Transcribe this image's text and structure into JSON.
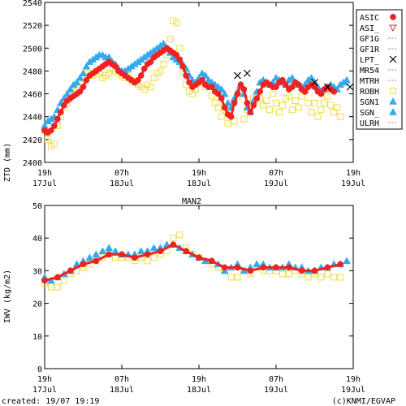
{
  "footer": {
    "created": "created: 19/07 19:19",
    "credit": "(c)KNMI/EGVAP"
  },
  "chart_data": [
    {
      "type": "scatter",
      "title": "",
      "ylabel": "ZTD (mm)",
      "xlabel": "",
      "ylim": [
        2400,
        2540
      ],
      "yticks": [
        2400,
        2420,
        2440,
        2460,
        2480,
        2500,
        2520,
        2540
      ],
      "xlim": [
        0,
        48
      ],
      "xticks": [
        {
          "x": 0,
          "line1": "19h",
          "line2": "17Jul"
        },
        {
          "x": 12,
          "line1": "07h",
          "line2": "18Jul"
        },
        {
          "x": 24,
          "line1": "19h",
          "line2": "18Jul"
        },
        {
          "x": 36,
          "line1": "07h",
          "line2": "19Jul"
        },
        {
          "x": 48,
          "line1": "19h",
          "line2": "19Jul"
        }
      ],
      "grid": false,
      "legend_position": "right",
      "legend": [
        {
          "name": "ASIC",
          "color": "#ee2222",
          "marker": "dot"
        },
        {
          "name": "ASI_",
          "color": "#cc3333",
          "marker": "triangle-down"
        },
        {
          "name": "GF1G",
          "color": "#888888",
          "marker": "dash"
        },
        {
          "name": "GF1R",
          "color": "#888888",
          "marker": "dash"
        },
        {
          "name": "LPT_",
          "color": "#000000",
          "marker": "x"
        },
        {
          "name": "MR54",
          "color": "#888888",
          "marker": "dash"
        },
        {
          "name": "MTRH",
          "color": "#888888",
          "marker": "dash"
        },
        {
          "name": "ROBH",
          "color": "#eedd44",
          "marker": "square"
        },
        {
          "name": "SGN1",
          "color": "#33aaee",
          "marker": "triangle-up"
        },
        {
          "name": "SGN_",
          "color": "#33aaee",
          "marker": "triangle-up"
        },
        {
          "name": "ULRH",
          "color": "#888888",
          "marker": "dash"
        }
      ],
      "series": [
        {
          "name": "ROBH",
          "color": "#eedd44",
          "marker": "square",
          "x": [
            0,
            0.5,
            1,
            1.5,
            2,
            2.5,
            3,
            3.5,
            4,
            4.5,
            5,
            5.5,
            6,
            6.5,
            7,
            7.5,
            8,
            8.5,
            9,
            9.5,
            10,
            10.5,
            11,
            11.5,
            12,
            12.5,
            13,
            13.5,
            14,
            14.5,
            15,
            15.5,
            16,
            16.5,
            17,
            17.5,
            18,
            18.5,
            19,
            19.5,
            20,
            20.5,
            21,
            21.5,
            22,
            22.5,
            23,
            23.5,
            24,
            24.5,
            25,
            25.5,
            26,
            26.5,
            27,
            27.5,
            28,
            28.5,
            29,
            29.5,
            30,
            30.5,
            31,
            31.5,
            32,
            32.5,
            33,
            33.5,
            34,
            34.5,
            35,
            35.5,
            36,
            36.5,
            37,
            37.5,
            38,
            38.5,
            39,
            39.5,
            40,
            40.5,
            41,
            41.5,
            42,
            42.5,
            43,
            43.5,
            44,
            44.5,
            45,
            45.5,
            46
          ],
          "y": [
            2428,
            2420,
            2414,
            2416,
            2432,
            2440,
            2448,
            2452,
            2458,
            2462,
            2466,
            2468,
            2474,
            2478,
            2478,
            2476,
            2480,
            2478,
            2474,
            2476,
            2478,
            2482,
            2480,
            2478,
            2476,
            2474,
            2476,
            2472,
            2470,
            2468,
            2466,
            2464,
            2468,
            2466,
            2474,
            2478,
            2480,
            2486,
            2494,
            2508,
            2524,
            2522,
            2500,
            2480,
            2468,
            2462,
            2460,
            2464,
            2470,
            2474,
            2466,
            2468,
            2458,
            2452,
            2448,
            2440,
            2446,
            2434,
            2450,
            2436,
            2458,
            2464,
            2438,
            2446,
            2452,
            2456,
            2460,
            2456,
            2450,
            2454,
            2446,
            2460,
            2452,
            2444,
            2450,
            2456,
            2458,
            2446,
            2454,
            2448,
            2458,
            2462,
            2452,
            2444,
            2452,
            2440,
            2446,
            2452,
            2458,
            2450,
            2444,
            2448,
            2440
          ]
        },
        {
          "name": "SGN1",
          "color": "#33aaee",
          "marker": "triangle-up",
          "x": [
            0,
            0.5,
            1,
            1.5,
            2,
            2.5,
            3,
            3.5,
            4,
            4.5,
            5,
            5.5,
            6,
            6.5,
            7,
            7.5,
            8,
            8.5,
            9,
            9.5,
            10,
            10.5,
            11,
            11.5,
            12,
            12.5,
            13,
            13.5,
            14,
            14.5,
            15,
            15.5,
            16,
            16.5,
            17,
            17.5,
            18,
            18.5,
            19,
            19.5,
            20,
            20.5,
            21,
            21.5,
            22,
            22.5,
            23,
            23.5,
            24,
            24.5,
            25,
            25.5,
            26,
            26.5,
            27,
            27.5,
            28,
            28.5,
            29,
            29.5,
            30,
            30.5,
            31,
            31.5,
            32,
            32.5,
            33,
            33.5,
            34,
            34.5,
            35,
            35.5,
            36,
            36.5,
            37,
            37.5,
            38,
            38.5,
            39,
            39.5,
            40,
            40.5,
            41,
            41.5,
            42,
            42.5,
            43,
            43.5,
            44,
            44.5,
            45,
            45.5,
            46,
            46.5,
            47
          ],
          "y": [
            2432,
            2436,
            2438,
            2440,
            2446,
            2452,
            2456,
            2460,
            2464,
            2468,
            2470,
            2474,
            2478,
            2484,
            2488,
            2490,
            2492,
            2494,
            2494,
            2492,
            2492,
            2488,
            2486,
            2482,
            2480,
            2480,
            2482,
            2484,
            2486,
            2488,
            2490,
            2492,
            2494,
            2496,
            2498,
            2500,
            2502,
            2504,
            2500,
            2496,
            2492,
            2490,
            2488,
            2486,
            2482,
            2476,
            2472,
            2470,
            2474,
            2478,
            2476,
            2472,
            2470,
            2468,
            2466,
            2464,
            2460,
            2452,
            2448,
            2456,
            2462,
            2468,
            2460,
            2448,
            2444,
            2454,
            2462,
            2470,
            2472,
            2470,
            2468,
            2470,
            2474,
            2472,
            2470,
            2468,
            2472,
            2474,
            2470,
            2468,
            2466,
            2468,
            2472,
            2474,
            2470,
            2466,
            2462,
            2464,
            2466,
            2468,
            2466,
            2464,
            2468,
            2470,
            2472
          ]
        },
        {
          "name": "ASIC",
          "color": "#ee2222",
          "marker": "dot",
          "x": [
            0,
            0.5,
            1,
            1.5,
            2,
            2.5,
            3,
            3.5,
            4,
            4.5,
            5,
            5.5,
            6,
            6.5,
            7,
            7.5,
            8,
            8.5,
            9,
            9.5,
            10,
            10.5,
            11,
            11.5,
            12,
            12.5,
            13,
            13.5,
            14,
            14.5,
            15,
            15.5,
            16,
            16.5,
            17,
            17.5,
            18,
            18.5,
            19,
            19.5,
            20,
            20.5,
            21,
            21.5,
            22,
            22.5,
            23,
            23.5,
            24,
            24.5,
            25,
            25.5,
            26,
            26.5,
            27,
            27.5,
            28,
            28.5,
            29,
            29.5,
            30,
            30.5,
            31,
            31.5,
            32,
            32.5,
            33,
            33.5,
            34,
            34.5,
            35,
            35.5,
            36,
            36.5,
            37,
            37.5,
            38,
            38.5,
            39,
            39.5,
            40,
            40.5,
            41,
            41.5,
            42,
            42.5,
            43,
            43.5,
            44,
            44.5,
            45
          ],
          "y": [
            2428,
            2426,
            2428,
            2432,
            2438,
            2444,
            2450,
            2454,
            2456,
            2458,
            2460,
            2462,
            2466,
            2472,
            2476,
            2478,
            2480,
            2482,
            2484,
            2486,
            2488,
            2486,
            2484,
            2480,
            2478,
            2476,
            2474,
            2472,
            2470,
            2472,
            2476,
            2482,
            2486,
            2488,
            2492,
            2494,
            2496,
            2498,
            2500,
            2498,
            2496,
            2494,
            2490,
            2484,
            2476,
            2470,
            2466,
            2468,
            2470,
            2472,
            2468,
            2466,
            2466,
            2462,
            2460,
            2456,
            2448,
            2442,
            2440,
            2452,
            2460,
            2468,
            2464,
            2452,
            2444,
            2450,
            2456,
            2462,
            2468,
            2470,
            2468,
            2466,
            2466,
            2470,
            2472,
            2468,
            2464,
            2466,
            2470,
            2468,
            2464,
            2462,
            2466,
            2468,
            2466,
            2462,
            2460,
            2464,
            2466,
            2464,
            2462
          ]
        },
        {
          "name": "LPT_",
          "color": "#000000",
          "marker": "x",
          "x": [
            30,
            31.5,
            42,
            44,
            47.5
          ],
          "y": [
            2476,
            2478,
            2470,
            2466,
            2466
          ]
        }
      ]
    },
    {
      "type": "scatter",
      "title": "MAN2",
      "ylabel": "IWV (kg/m2)",
      "xlabel": "",
      "ylim": [
        0,
        50
      ],
      "yticks": [
        0,
        10,
        20,
        30,
        40,
        50
      ],
      "xlim": [
        0,
        48
      ],
      "xticks": [
        {
          "x": 0,
          "line1": "19h",
          "line2": "17Jul"
        },
        {
          "x": 12,
          "line1": "07h",
          "line2": "18Jul"
        },
        {
          "x": 24,
          "line1": "19h",
          "line2": "18Jul"
        },
        {
          "x": 36,
          "line1": "07h",
          "line2": "19Jul"
        },
        {
          "x": 48,
          "line1": "19h",
          "line2": "19Jul"
        }
      ],
      "grid": false,
      "series": [
        {
          "name": "ROBH",
          "color": "#eedd44",
          "marker": "square",
          "x": [
            0,
            1,
            2,
            3,
            4,
            5,
            6,
            7,
            8,
            9,
            10,
            11,
            12,
            13,
            14,
            15,
            16,
            17,
            18,
            19,
            20,
            21,
            22,
            23,
            24,
            25,
            26,
            27,
            28,
            29,
            30,
            31,
            32,
            33,
            34,
            35,
            36,
            37,
            38,
            39,
            40,
            41,
            42,
            43,
            44,
            45,
            46
          ],
          "y": [
            26,
            25,
            25,
            27,
            29,
            30,
            31,
            32,
            33,
            34,
            35,
            34,
            34,
            34,
            33,
            34,
            33,
            34,
            35,
            36,
            40,
            41,
            37,
            35,
            34,
            33,
            32,
            31,
            30,
            28,
            28,
            30,
            29,
            31,
            30,
            30,
            30,
            29,
            29,
            30,
            29,
            28,
            29,
            28,
            29,
            28,
            28
          ]
        },
        {
          "name": "SGN1",
          "color": "#33aaee",
          "marker": "triangle-up",
          "x": [
            0,
            1,
            2,
            3,
            4,
            5,
            6,
            7,
            8,
            9,
            10,
            11,
            12,
            13,
            14,
            15,
            16,
            17,
            18,
            19,
            20,
            21,
            22,
            23,
            24,
            25,
            26,
            27,
            28,
            29,
            30,
            31,
            32,
            33,
            34,
            35,
            36,
            37,
            38,
            39,
            40,
            41,
            42,
            43,
            44,
            45,
            46,
            47
          ],
          "y": [
            28,
            27,
            28,
            29,
            30,
            32,
            33,
            34,
            35,
            36,
            37,
            36,
            35,
            35,
            35,
            36,
            36,
            37,
            37,
            38,
            38,
            37,
            36,
            35,
            34,
            33,
            33,
            32,
            30,
            31,
            32,
            30,
            31,
            32,
            32,
            31,
            31,
            31,
            32,
            31,
            31,
            30,
            30,
            31,
            31,
            32,
            32,
            33
          ]
        },
        {
          "name": "ASIC",
          "color": "#ee2222",
          "marker": "dot",
          "x": [
            0,
            2,
            4,
            6,
            8,
            10,
            12,
            14,
            16,
            18,
            20,
            22,
            24,
            26,
            28,
            30,
            32,
            34,
            36,
            38,
            40,
            42,
            44,
            46
          ],
          "y": [
            27,
            28,
            30,
            32,
            33,
            35,
            35,
            34,
            35,
            36,
            38,
            36,
            34,
            33,
            31,
            31,
            30,
            31,
            31,
            31,
            30,
            30,
            31,
            32
          ]
        }
      ]
    }
  ]
}
